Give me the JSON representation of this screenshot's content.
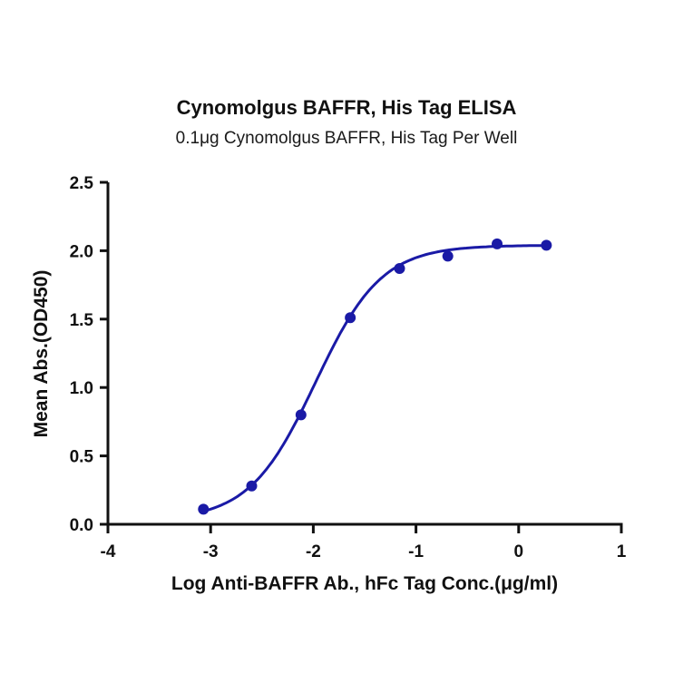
{
  "chart_data": {
    "type": "scatter",
    "title": "Cynomolgus BAFFR, His Tag ELISA",
    "subtitle": "0.1μg Cynomolgus BAFFR, His Tag Per Well",
    "xlabel": "Log Anti-BAFFR Ab., hFc Tag Conc.(μg/ml)",
    "ylabel": "Mean Abs.(OD450)",
    "xlim": [
      -4,
      1
    ],
    "ylim": [
      0,
      2.5
    ],
    "x_ticks": [
      "-4",
      "-3",
      "-2",
      "-1",
      "0",
      "1"
    ],
    "y_ticks": [
      "0.0",
      "0.5",
      "1.0",
      "1.5",
      "2.0",
      "2.5"
    ],
    "grid": false,
    "legend": null,
    "series": [
      {
        "name": "Mean Abs.(OD450)",
        "color": "#1a1aa6",
        "marker": "circle",
        "fit": "4PL sigmoidal curve",
        "x": [
          -3.07,
          -2.6,
          -2.12,
          -1.64,
          -1.16,
          -0.69,
          -0.21,
          0.27
        ],
        "y": [
          0.11,
          0.28,
          0.8,
          1.51,
          1.87,
          1.96,
          2.05,
          2.04
        ]
      }
    ],
    "fit_params": {
      "bottom": 0.03,
      "top": 2.04,
      "logEC50": -1.98,
      "hill": 1.35
    }
  }
}
